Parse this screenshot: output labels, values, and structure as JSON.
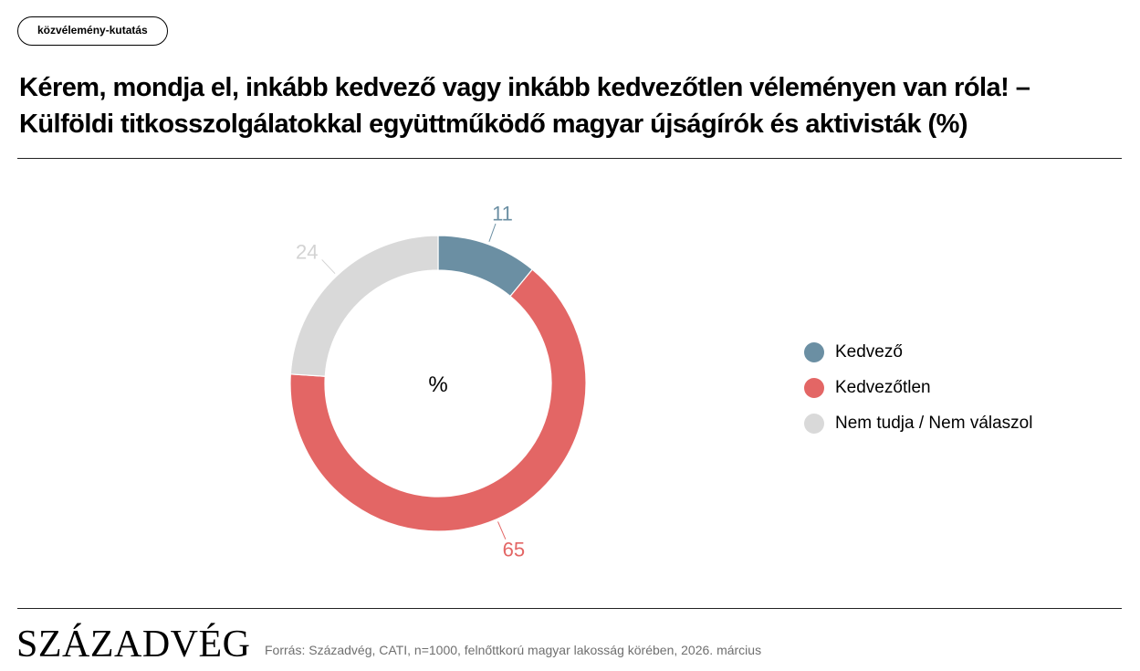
{
  "tag": "közvélemény-kutatás",
  "title_lines": [
    "Kérem, mondja el, inkább kedvező vagy inkább kedvezőtlen véleményen van róla! –",
    "Külföldi titkosszolgálatokkal együttműködő magyar újságírók és aktivisták (%)"
  ],
  "chart_data": {
    "type": "pie",
    "variant": "donut",
    "center_label": "%",
    "categories": [
      "Kedvező",
      "Kedvezőtlen",
      "Nem tudja / Nem válaszol"
    ],
    "values": [
      11,
      65,
      24
    ],
    "colors": [
      "#6b8fa3",
      "#e36665",
      "#d9d9d9"
    ],
    "legend_placement": "right"
  },
  "brand": "SZÁZADVÉG",
  "source": "Forrás: Századvég, CATI, n=1000, felnőttkorú magyar lakosság körében, 2026. március"
}
